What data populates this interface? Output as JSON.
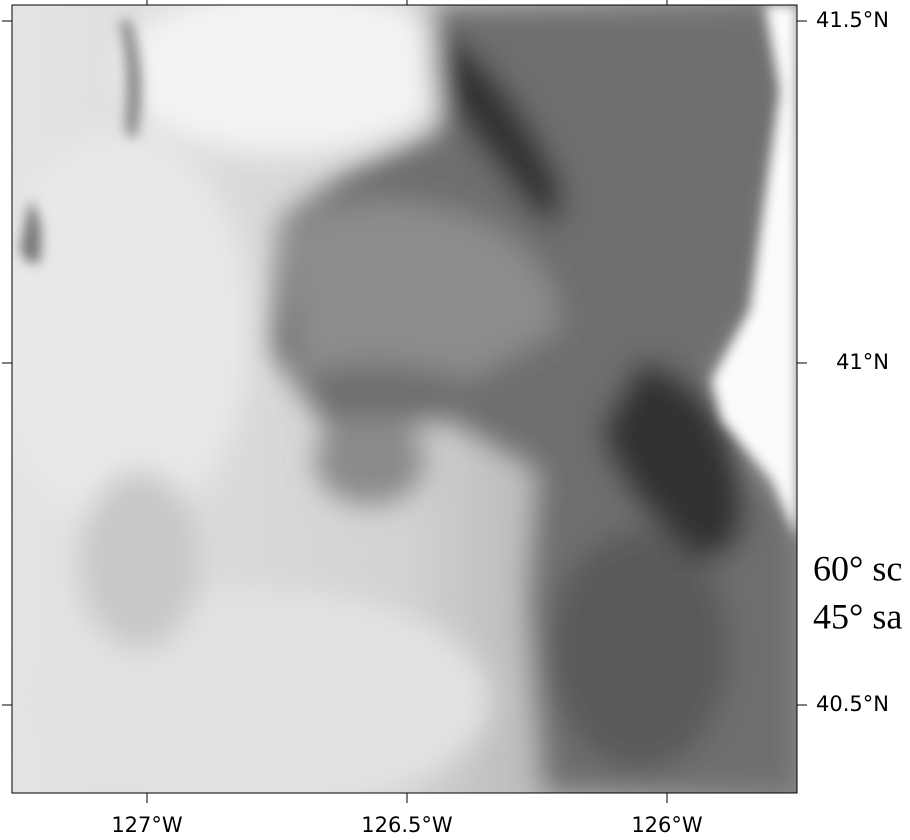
{
  "map": {
    "lat_labels": [
      "41.5°N",
      "41°N",
      "40.5°N"
    ],
    "lon_labels": [
      "127°W",
      "126.5°W",
      "126°W"
    ],
    "annotations": [
      "60° sc",
      "45° sa"
    ]
  }
}
